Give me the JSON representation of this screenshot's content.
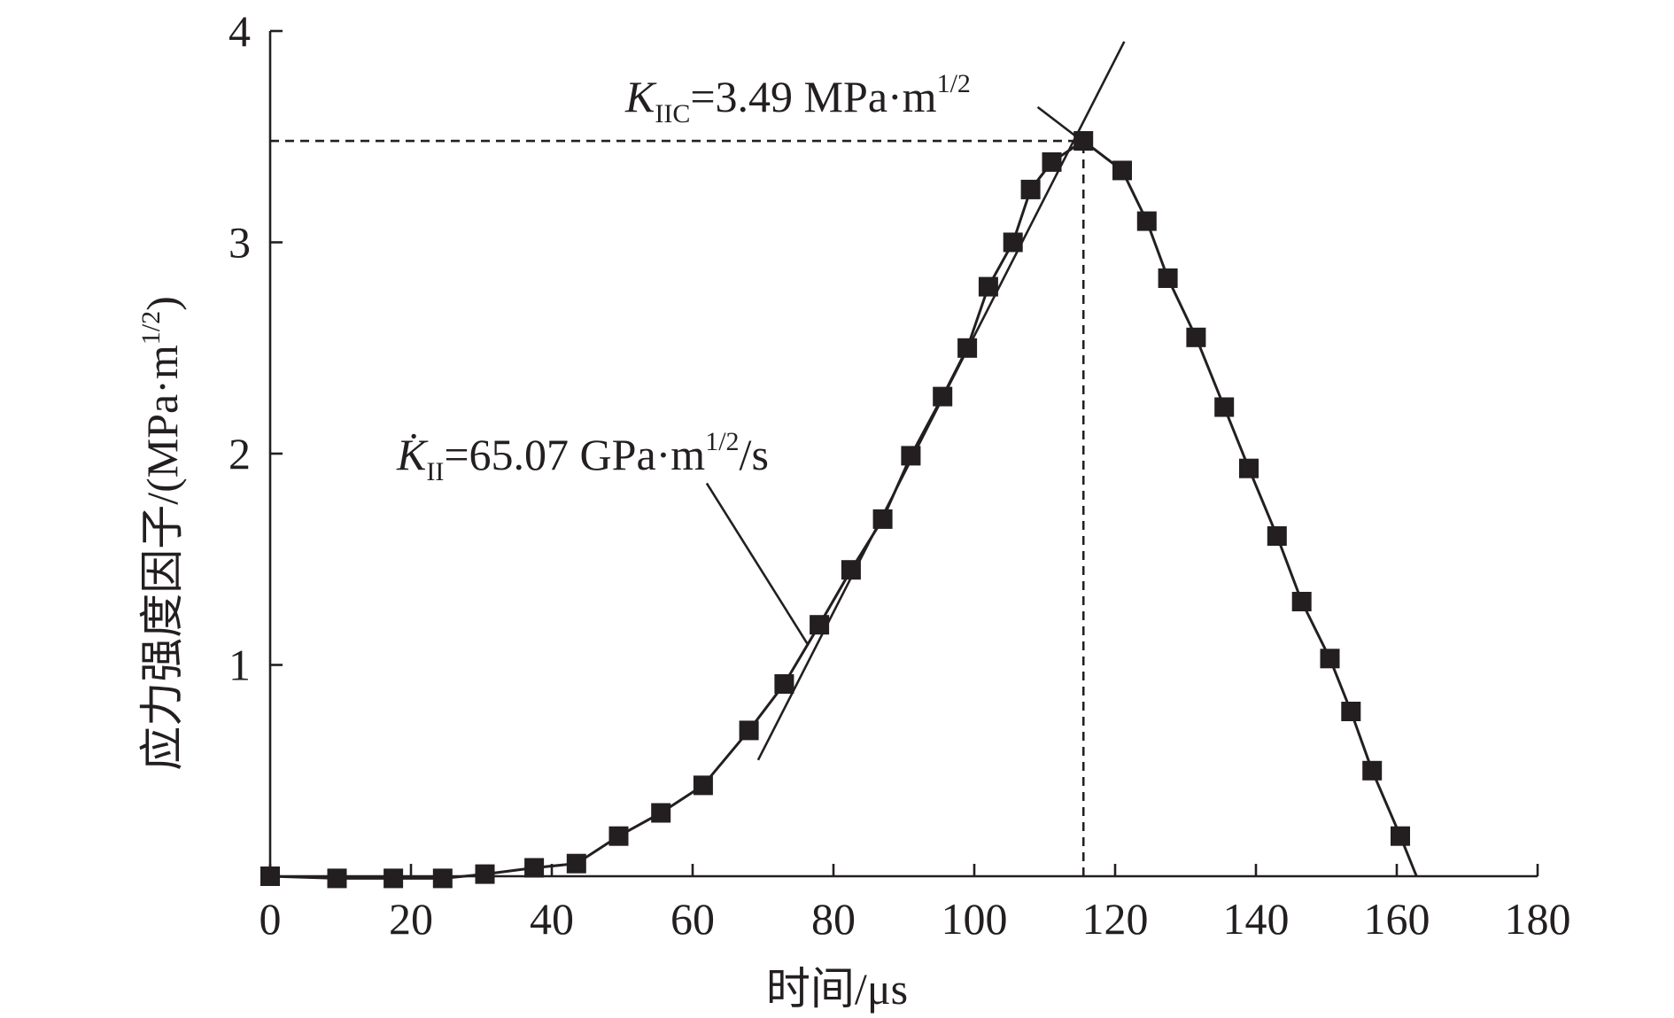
{
  "chart_data": {
    "type": "line",
    "x": [
      0,
      9.5,
      17.5,
      24.5,
      30.5,
      37.5,
      43.5,
      49.5,
      55.5,
      61.5,
      68,
      73,
      78,
      82.5,
      87,
      91,
      95.5,
      99,
      102,
      105.5,
      108,
      111,
      115.5,
      121,
      124.5,
      127.5,
      131.5,
      135.5,
      139,
      143,
      146.5,
      150.5,
      153.5,
      156.5,
      160.5
    ],
    "series": [
      {
        "name": "应力强度因子",
        "values": [
          0,
          -0.01,
          -0.01,
          -0.01,
          0.01,
          0.04,
          0.06,
          0.19,
          0.3,
          0.43,
          0.69,
          0.91,
          1.19,
          1.45,
          1.69,
          1.99,
          2.27,
          2.5,
          2.79,
          3.0,
          3.25,
          3.38,
          3.48,
          3.34,
          3.1,
          2.83,
          2.55,
          2.22,
          1.93,
          1.61,
          1.3,
          1.03,
          0.78,
          0.5,
          0.19
        ]
      }
    ],
    "line_extensions": {
      "start": {
        "x": -1,
        "y": 0
      },
      "end": {
        "x": 162.8,
        "y": 0
      }
    },
    "fit_line": {
      "name": "K̇II fit",
      "x": [
        69.3,
        121.3
      ],
      "y": [
        0.55,
        3.95
      ]
    },
    "reference_lines": {
      "horizontal_y": 3.48,
      "horizontal_x_range": [
        0,
        115.5
      ],
      "vertical_x": 115.5,
      "vertical_y_range": [
        0,
        3.48
      ]
    },
    "xlabel": "时间/μs",
    "ylabel": "应力强度因子/(MPa·m1/2)",
    "ylabel_parts": {
      "main": "应力强度因子/(MPa·m",
      "sup": "1/2",
      "close": ")"
    },
    "xlim": [
      0,
      180
    ],
    "ylim": [
      0,
      4
    ],
    "xticks": [
      0,
      20,
      40,
      60,
      80,
      100,
      120,
      140,
      160,
      180
    ],
    "xtick_labels": [
      "0",
      "20",
      "40",
      "60",
      "80",
      "100",
      "120",
      "140",
      "160",
      "180"
    ],
    "yticks": [
      1,
      2,
      3,
      4
    ],
    "ytick_labels": [
      "1",
      "2",
      "3",
      "4"
    ],
    "annotations": [
      {
        "id": "kiic",
        "symbol": "K",
        "sub": "IIC",
        "text": "=3.49 MPa·m",
        "sup": "1/2",
        "suffix": "",
        "leader_from": {
          "x": 109,
          "y": 3.64
        },
        "leader_to": {
          "x": 114.5,
          "y": 3.5
        }
      },
      {
        "id": "kii-rate",
        "symbol": "K̇",
        "sub": "II",
        "text": "=65.07 GPa·m",
        "sup": "1/2",
        "suffix": "/s",
        "leader_from": {
          "x": 62,
          "y": 1.86
        },
        "leader_to": {
          "x": 76.3,
          "y": 1.1
        }
      }
    ],
    "grid": false,
    "legend": "none"
  },
  "colors": {
    "ink": "#231f20",
    "background": "#ffffff"
  }
}
